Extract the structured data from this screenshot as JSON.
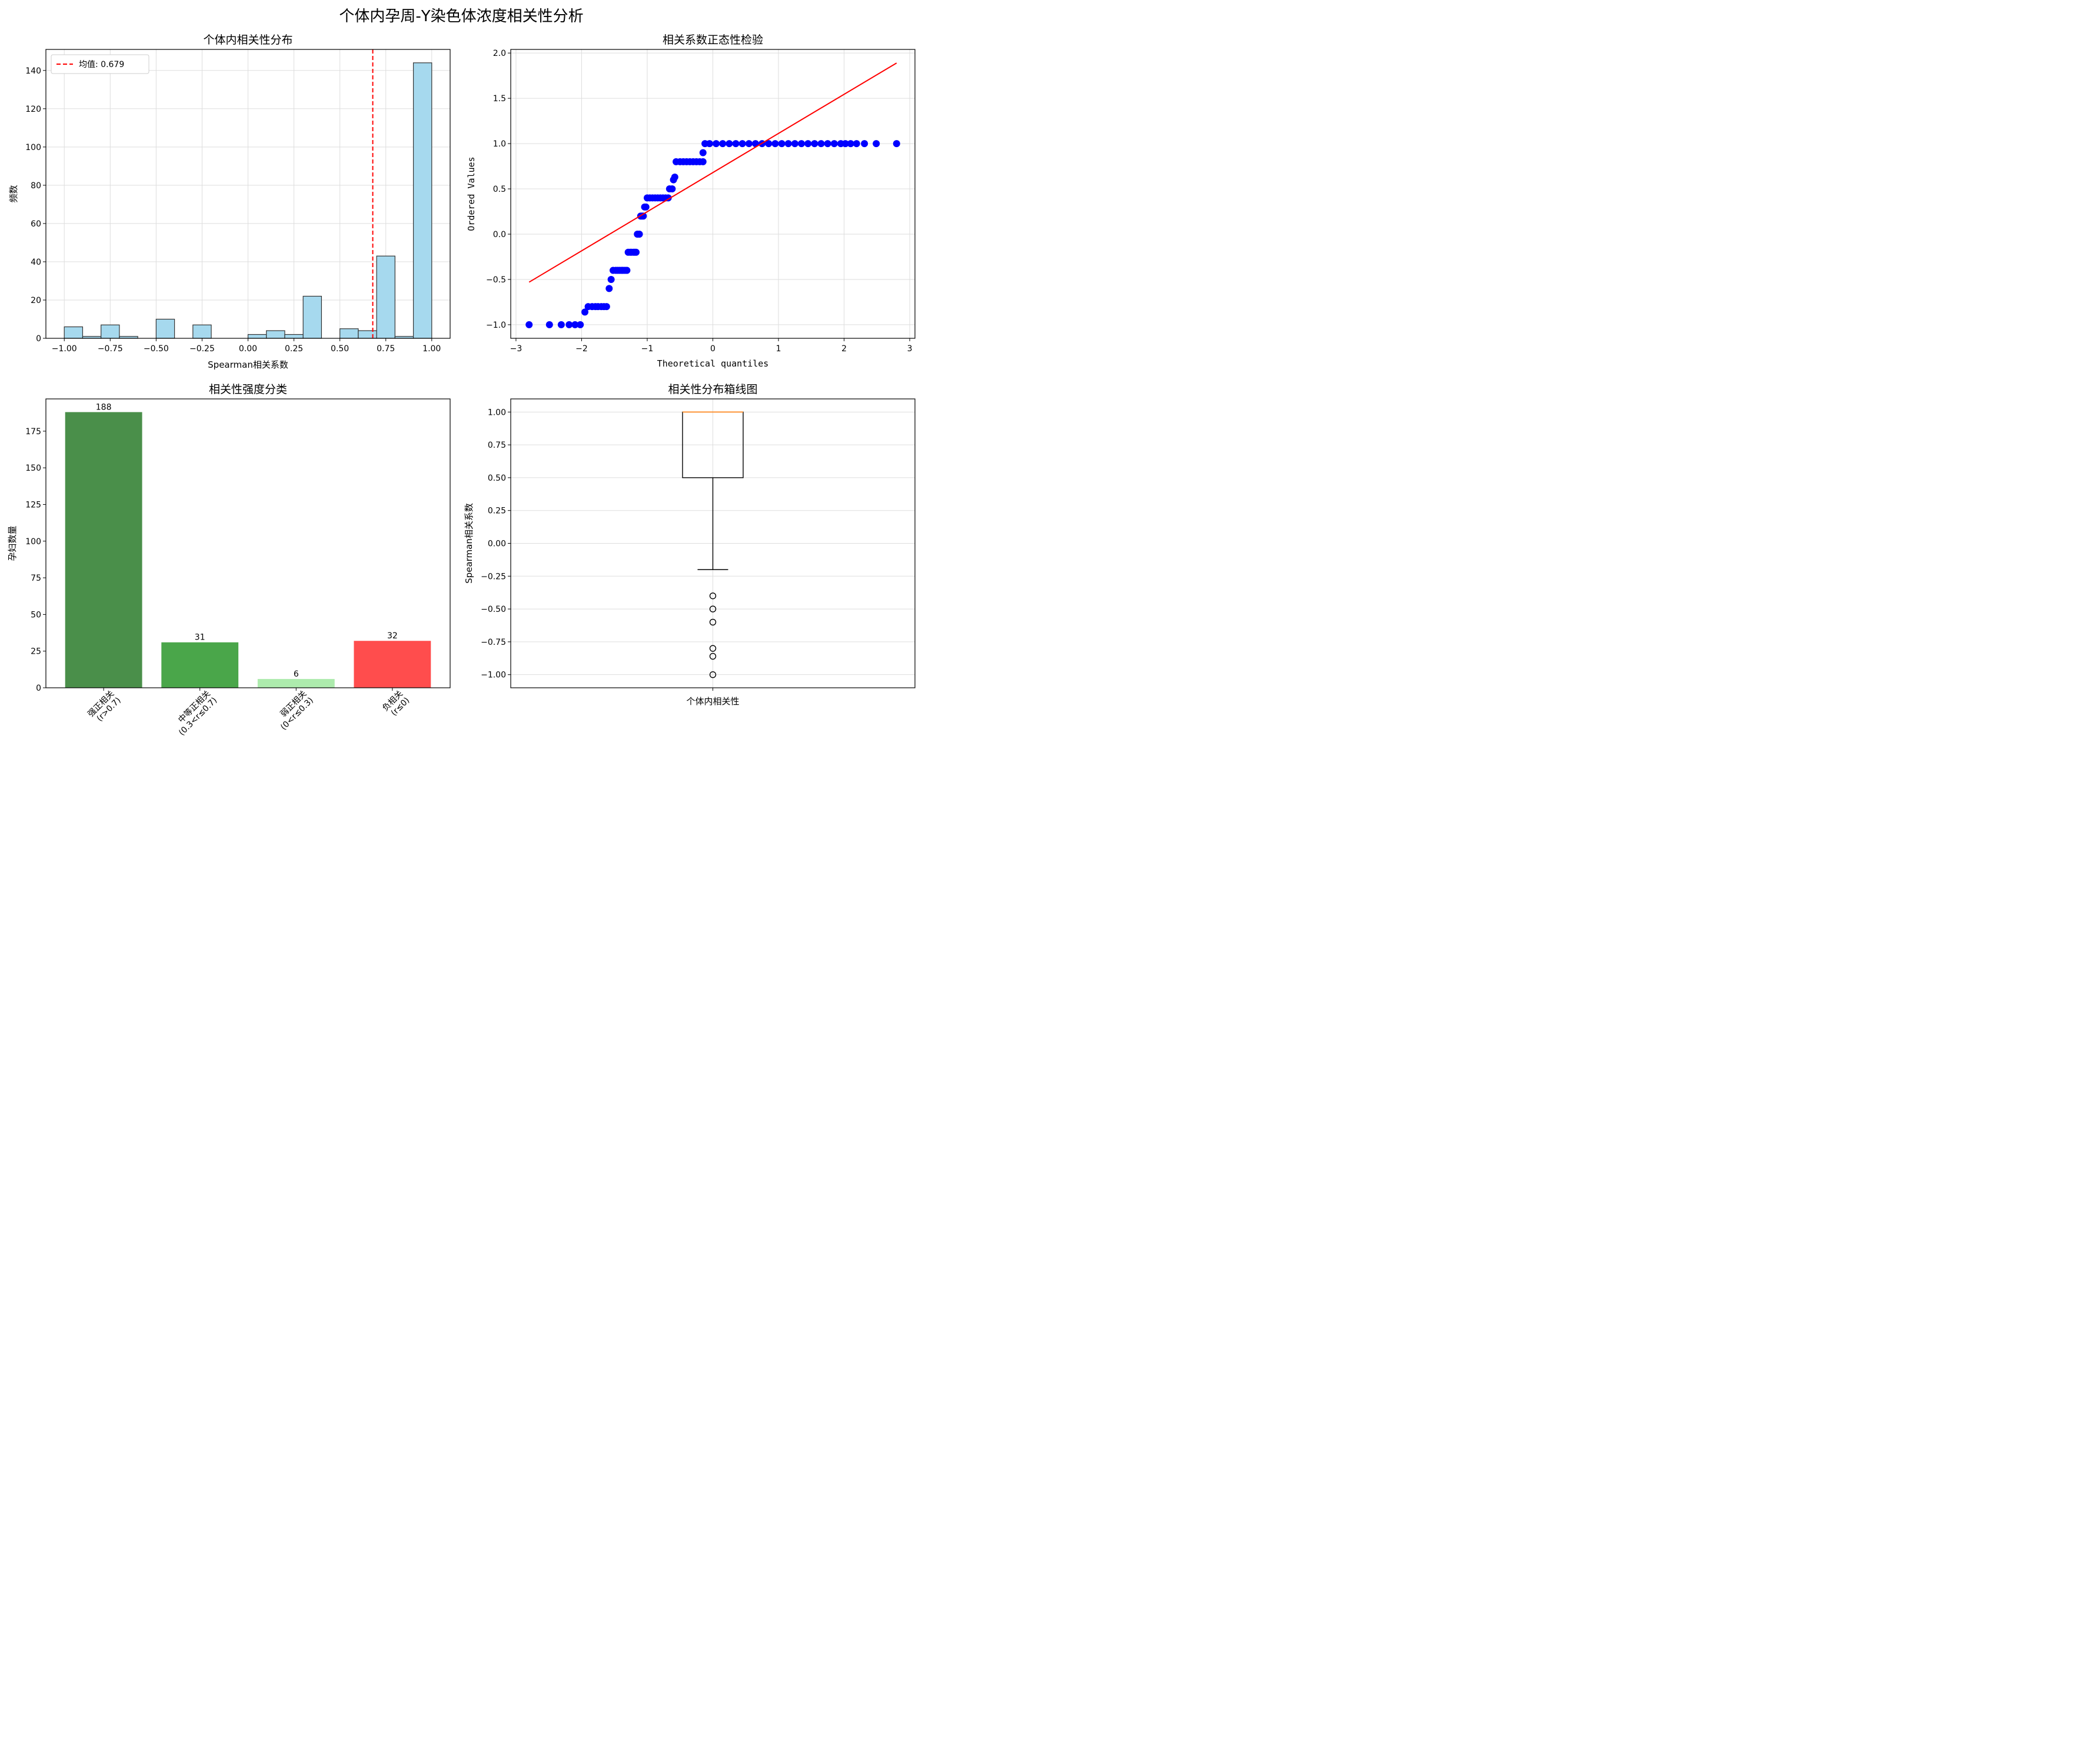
{
  "figure": {
    "title": "个体内孕周-Y染色体浓度相关性分析"
  },
  "colors": {
    "hist_fill": "#a6d9ee",
    "hist_edge": "#333333",
    "mean_line": "#ff0000",
    "qq_points": "#0000ff",
    "qq_line": "#ff0000",
    "median": "#ff7f0e",
    "grid": "#dddddd",
    "bars": [
      "#4a8f4a",
      "#4aa64a",
      "#adebad",
      "#ff4d4d"
    ]
  },
  "chart_data": [
    {
      "type": "bar",
      "subtype": "histogram",
      "title": "个体内相关性分布",
      "xlabel": "Spearman相关系数",
      "ylabel": "频数",
      "xlim": [
        -1.1,
        1.1
      ],
      "ylim": [
        0,
        151
      ],
      "xticks": [
        -1.0,
        -0.75,
        -0.5,
        -0.25,
        0.0,
        0.25,
        0.5,
        0.75,
        1.0
      ],
      "xtick_labels": [
        "−1.00",
        "−0.75",
        "−0.50",
        "−0.25",
        "0.00",
        "0.25",
        "0.50",
        "0.75",
        "1.00"
      ],
      "yticks": [
        0,
        20,
        40,
        60,
        80,
        100,
        120,
        140
      ],
      "ytick_labels": [
        "0",
        "20",
        "40",
        "60",
        "80",
        "100",
        "120",
        "140"
      ],
      "bin_start": -1.0,
      "bin_width": 0.1,
      "counts": [
        6,
        1,
        7,
        1,
        0,
        10,
        0,
        7,
        0,
        0,
        2,
        4,
        2,
        22,
        0,
        5,
        4,
        43,
        1,
        144
      ],
      "mean": 0.679,
      "legend": {
        "label": "均值: 0.679",
        "placement": "top-left"
      },
      "grid": true
    },
    {
      "type": "scatter",
      "subtype": "qq-plot",
      "title": "相关系数正态性检验",
      "xlabel": "Theoretical quantiles",
      "ylabel": "Ordered Values",
      "xlim": [
        -3.08,
        3.08
      ],
      "ylim": [
        -1.15,
        2.04
      ],
      "xticks": [
        -3,
        -2,
        -1,
        0,
        1,
        2,
        3
      ],
      "xtick_labels": [
        "−3",
        "−2",
        "−1",
        "0",
        "1",
        "2",
        "3"
      ],
      "yticks": [
        -1.0,
        -0.5,
        0.0,
        0.5,
        1.0,
        1.5,
        2.0
      ],
      "ytick_labels": [
        "−1.0",
        "−0.5",
        "0.0",
        "0.5",
        "1.0",
        "1.5",
        "2.0"
      ],
      "points": [
        [
          -2.8,
          -1.0
        ],
        [
          -2.49,
          -1.0
        ],
        [
          -2.31,
          -1.0
        ],
        [
          -2.19,
          -1.0
        ],
        [
          -2.1,
          -1.0
        ],
        [
          -2.02,
          -1.0
        ],
        [
          -1.95,
          -0.86
        ],
        [
          -1.9,
          -0.8
        ],
        [
          -1.84,
          -0.8
        ],
        [
          -1.79,
          -0.8
        ],
        [
          -1.75,
          -0.8
        ],
        [
          -1.7,
          -0.8
        ],
        [
          -1.66,
          -0.8
        ],
        [
          -1.62,
          -0.8
        ],
        [
          -1.58,
          -0.6
        ],
        [
          -1.55,
          -0.5
        ],
        [
          -1.52,
          -0.4
        ],
        [
          -1.48,
          -0.4
        ],
        [
          -1.45,
          -0.4
        ],
        [
          -1.42,
          -0.4
        ],
        [
          -1.39,
          -0.4
        ],
        [
          -1.37,
          -0.4
        ],
        [
          -1.34,
          -0.4
        ],
        [
          -1.31,
          -0.4
        ],
        [
          -1.29,
          -0.2
        ],
        [
          -1.26,
          -0.2
        ],
        [
          -1.24,
          -0.2
        ],
        [
          -1.21,
          -0.2
        ],
        [
          -1.19,
          -0.2
        ],
        [
          -1.17,
          -0.2
        ],
        [
          -1.15,
          0.0
        ],
        [
          -1.12,
          0.0
        ],
        [
          -1.1,
          0.2
        ],
        [
          -1.08,
          0.2
        ],
        [
          -1.06,
          0.2
        ],
        [
          -1.04,
          0.3
        ],
        [
          -1.02,
          0.3
        ],
        [
          -1.0,
          0.4
        ],
        [
          -0.96,
          0.4
        ],
        [
          -0.92,
          0.4
        ],
        [
          -0.88,
          0.4
        ],
        [
          -0.84,
          0.4
        ],
        [
          -0.8,
          0.4
        ],
        [
          -0.76,
          0.4
        ],
        [
          -0.72,
          0.4
        ],
        [
          -0.68,
          0.4
        ],
        [
          -0.66,
          0.5
        ],
        [
          -0.62,
          0.5
        ],
        [
          -0.6,
          0.6
        ],
        [
          -0.58,
          0.63
        ],
        [
          -0.56,
          0.8
        ],
        [
          -0.5,
          0.8
        ],
        [
          -0.45,
          0.8
        ],
        [
          -0.4,
          0.8
        ],
        [
          -0.35,
          0.8
        ],
        [
          -0.3,
          0.8
        ],
        [
          -0.25,
          0.8
        ],
        [
          -0.2,
          0.8
        ],
        [
          -0.15,
          0.8
        ],
        [
          -0.15,
          0.9
        ],
        [
          -0.12,
          1.0
        ],
        [
          -0.05,
          1.0
        ],
        [
          0.05,
          1.0
        ],
        [
          0.15,
          1.0
        ],
        [
          0.25,
          1.0
        ],
        [
          0.35,
          1.0
        ],
        [
          0.45,
          1.0
        ],
        [
          0.55,
          1.0
        ],
        [
          0.65,
          1.0
        ],
        [
          0.75,
          1.0
        ],
        [
          0.85,
          1.0
        ],
        [
          0.95,
          1.0
        ],
        [
          1.05,
          1.0
        ],
        [
          1.15,
          1.0
        ],
        [
          1.25,
          1.0
        ],
        [
          1.35,
          1.0
        ],
        [
          1.45,
          1.0
        ],
        [
          1.55,
          1.0
        ],
        [
          1.65,
          1.0
        ],
        [
          1.75,
          1.0
        ],
        [
          1.85,
          1.0
        ],
        [
          1.95,
          1.0
        ],
        [
          2.02,
          1.0
        ],
        [
          2.1,
          1.0
        ],
        [
          2.19,
          1.0
        ],
        [
          2.31,
          1.0
        ],
        [
          2.49,
          1.0
        ],
        [
          2.8,
          1.0
        ]
      ],
      "fit_line": [
        [
          -2.8,
          -0.53
        ],
        [
          2.8,
          1.89
        ]
      ],
      "grid": true
    },
    {
      "type": "bar",
      "title": "相关性强度分类",
      "xlabel": "",
      "ylabel": "孕妇数量",
      "ylim": [
        0,
        197
      ],
      "yticks": [
        0,
        25,
        50,
        75,
        100,
        125,
        150,
        175
      ],
      "ytick_labels": [
        "0",
        "25",
        "50",
        "75",
        "100",
        "125",
        "150",
        "175"
      ],
      "categories": [
        [
          "强正相关",
          "(r>0.7)"
        ],
        [
          "中等正相关",
          "(0.3<r≤0.7)"
        ],
        [
          "弱正相关",
          "(0<r≤0.3)"
        ],
        [
          "负相关",
          "(r≤0)"
        ]
      ],
      "values": [
        188,
        31,
        6,
        32
      ],
      "value_labels": [
        "188",
        "31",
        "6",
        "32"
      ],
      "grid": false
    },
    {
      "type": "box",
      "title": "相关性分布箱线图",
      "xlabel": "个体内相关性",
      "ylabel": "Spearman相关系数",
      "ylim": [
        -1.1,
        1.1
      ],
      "yticks": [
        -1.0,
        -0.75,
        -0.5,
        -0.25,
        0.0,
        0.25,
        0.5,
        0.75,
        1.0
      ],
      "ytick_labels": [
        "−1.00",
        "−0.75",
        "−0.50",
        "−0.25",
        "0.00",
        "0.25",
        "0.50",
        "0.75",
        "1.00"
      ],
      "box": {
        "q1": 0.5,
        "median": 1.0,
        "q3": 1.0,
        "whisker_low": -0.2,
        "whisker_high": 1.0
      },
      "outliers": [
        -0.4,
        -0.5,
        -0.6,
        -0.8,
        -0.86,
        -1.0
      ],
      "grid": true
    }
  ]
}
